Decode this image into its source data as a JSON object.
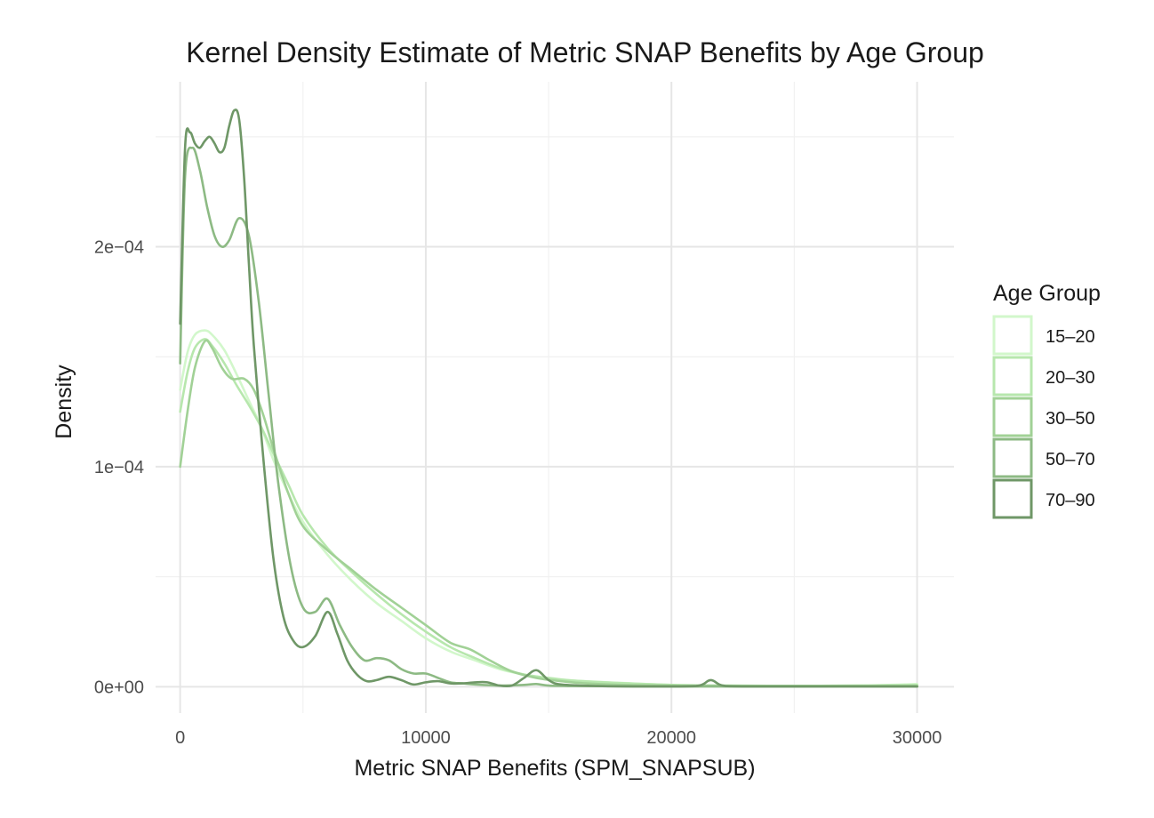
{
  "chart_data": {
    "type": "line",
    "title": "Kernel Density Estimate of Metric SNAP Benefits by Age Group",
    "xlabel": "Metric SNAP Benefits (SPM_SNAPSUB)",
    "ylabel": "Density",
    "xlim": [
      -1000,
      31500
    ],
    "ylim": [
      -1.2e-05,
      0.000275
    ],
    "x_ticks": [
      0,
      10000,
      20000,
      30000
    ],
    "x_tick_labels": [
      "0",
      "10000",
      "20000",
      "30000"
    ],
    "y_ticks": [
      0,
      0.0001,
      0.0002
    ],
    "y_tick_labels": [
      "0e+00",
      "1e−04",
      "2e−04"
    ],
    "grid": true,
    "legend_title": "Age Group",
    "legend_position": "right",
    "series": [
      {
        "name": "15–20",
        "color": "#d2f7cb",
        "x": [
          0,
          300,
          600,
          1000,
          1300,
          1800,
          2300,
          2800,
          3300,
          3800,
          4400,
          5000,
          6000,
          7000,
          8000,
          9000,
          10000,
          11000,
          12000,
          13000,
          14000,
          15000,
          16000,
          18000,
          20000,
          22000,
          25000,
          28000,
          30000
        ],
        "y": [
          0.000135,
          0.000152,
          0.00016,
          0.000162,
          0.00016,
          0.000153,
          0.000142,
          0.00013,
          0.000118,
          0.000103,
          8.8e-05,
          7.5e-05,
          6e-05,
          4.8e-05,
          3.8e-05,
          3e-05,
          2.2e-05,
          1.6e-05,
          1.2e-05,
          8e-06,
          5.5e-06,
          3.8e-06,
          2.8e-06,
          1.7e-06,
          8e-07,
          5e-07,
          4e-07,
          6e-07,
          1.2e-06
        ]
      },
      {
        "name": "20–30",
        "color": "#b7e7ad",
        "x": [
          0,
          300,
          600,
          1000,
          1300,
          1800,
          2300,
          2800,
          3300,
          3800,
          4400,
          5000,
          6000,
          7000,
          8000,
          9000,
          10000,
          11000,
          12000,
          13000,
          14000,
          15000,
          16000,
          18000,
          20000,
          22000,
          25000,
          28000,
          30000
        ],
        "y": [
          0.000125,
          0.000143,
          0.000154,
          0.000158,
          0.000155,
          0.000147,
          0.000137,
          0.000128,
          0.000118,
          0.000106,
          9.2e-05,
          7.8e-05,
          6.3e-05,
          5.2e-05,
          4.2e-05,
          3.3e-05,
          2.5e-05,
          1.8e-05,
          1.3e-05,
          8.5e-06,
          5.5e-06,
          4e-06,
          2.8e-06,
          1.6e-06,
          8e-07,
          5e-07,
          4e-07,
          5e-07,
          8e-07
        ]
      },
      {
        "name": "30–50",
        "color": "#a1d196",
        "x": [
          0,
          300,
          600,
          1000,
          1300,
          1700,
          2100,
          2600,
          3000,
          3400,
          3800,
          4400,
          5000,
          6000,
          7000,
          8000,
          9000,
          10000,
          11000,
          11800,
          12600,
          13500,
          14500,
          15500,
          16500,
          18000,
          20000,
          22000,
          25000,
          28000,
          30000
        ],
        "y": [
          0.0001,
          0.000125,
          0.000145,
          0.000157,
          0.000154,
          0.000145,
          0.00014,
          0.00014,
          0.000135,
          0.000123,
          0.000108,
          8.8e-05,
          7.3e-05,
          6.2e-05,
          5.3e-05,
          4.4e-05,
          3.6e-05,
          2.8e-05,
          2e-05,
          1.7e-05,
          1.2e-05,
          7e-06,
          4e-06,
          2.5e-06,
          1.5e-06,
          8e-07,
          5e-07,
          4e-07,
          3e-07,
          3e-07,
          3e-07
        ]
      },
      {
        "name": "50–70",
        "color": "#8dba84",
        "x": [
          0,
          200,
          500,
          800,
          1100,
          1400,
          1700,
          2000,
          2400,
          2800,
          3200,
          3600,
          4000,
          4500,
          5000,
          5500,
          6000,
          6500,
          7000,
          7500,
          8000,
          8500,
          9000,
          9500,
          10000,
          10500,
          11000,
          11500,
          12000,
          13000,
          14000,
          14500,
          15000,
          16000,
          18000,
          20000,
          22000,
          25000,
          27000,
          30000
        ],
        "y": [
          0.000147,
          0.000232,
          0.000245,
          0.000235,
          0.000218,
          0.000205,
          0.0002,
          0.000203,
          0.000213,
          0.000205,
          0.000175,
          0.000133,
          9.2e-05,
          5.5e-05,
          3.6e-05,
          3.4e-05,
          4e-05,
          2.8e-05,
          1.8e-05,
          1.2e-05,
          1.3e-05,
          1.2e-05,
          8e-06,
          6e-06,
          6e-06,
          4e-06,
          2e-06,
          1.5e-06,
          1e-06,
          5e-07,
          8e-07,
          1.2e-06,
          5e-07,
          3e-07,
          2e-07,
          1e-07,
          1e-07,
          1e-07,
          2e-07,
          1e-07
        ]
      },
      {
        "name": "70–90",
        "color": "#6f9767",
        "x": [
          0,
          200,
          400,
          600,
          800,
          1000,
          1200,
          1400,
          1600,
          1800,
          2000,
          2200,
          2400,
          2600,
          2800,
          3000,
          3400,
          3800,
          4200,
          4600,
          5000,
          5500,
          6000,
          6400,
          6800,
          7200,
          7600,
          8000,
          8500,
          9000,
          9500,
          10000,
          10500,
          11000,
          11500,
          12000,
          12500,
          13000,
          13500,
          14000,
          14500,
          15000,
          15500,
          17000,
          19000,
          21000,
          21600,
          22200,
          24000,
          27000,
          30000
        ],
        "y": [
          0.000165,
          0.000245,
          0.000252,
          0.000247,
          0.000245,
          0.000248,
          0.00025,
          0.000247,
          0.000243,
          0.000245,
          0.000255,
          0.000262,
          0.000258,
          0.000232,
          0.000192,
          0.000155,
          0.000102,
          5.8e-05,
          3.2e-05,
          2.1e-05,
          1.8e-05,
          2.3e-05,
          3.4e-05,
          2.4e-05,
          1.2e-05,
          5.5e-06,
          2.5e-06,
          3e-06,
          4.5e-06,
          3e-06,
          1e-06,
          2e-06,
          2.5e-06,
          1.5e-06,
          1.5e-06,
          2e-06,
          2e-06,
          5e-07,
          5e-07,
          4e-06,
          7.5e-06,
          3e-06,
          1e-06,
          3e-07,
          1e-07,
          3e-07,
          3e-06,
          3e-07,
          1e-07,
          1e-07,
          1e-07
        ]
      }
    ]
  }
}
